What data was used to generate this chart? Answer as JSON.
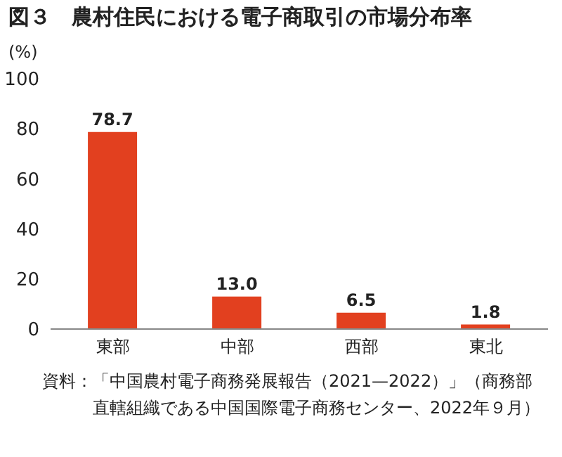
{
  "chart_data": {
    "type": "bar",
    "title": "図３　農村住民における電子商取引の市場分布率",
    "ylabel": "(%)",
    "categories": [
      "東部",
      "中部",
      "西部",
      "東北"
    ],
    "values": [
      78.7,
      13.0,
      6.5,
      1.8
    ],
    "value_labels": [
      "78.7",
      "13.0",
      "6.5",
      "1.8"
    ],
    "color": "#e2401f",
    "ylim": [
      0,
      100
    ],
    "yticks": [
      0,
      20,
      40,
      60,
      80,
      100
    ],
    "grid": false,
    "annotations": [
      "資料：「中国農村電子商務発展報告（2021—2022）」（商務部直轄組織である中国国際電子商務センター、2022年９月）"
    ]
  }
}
